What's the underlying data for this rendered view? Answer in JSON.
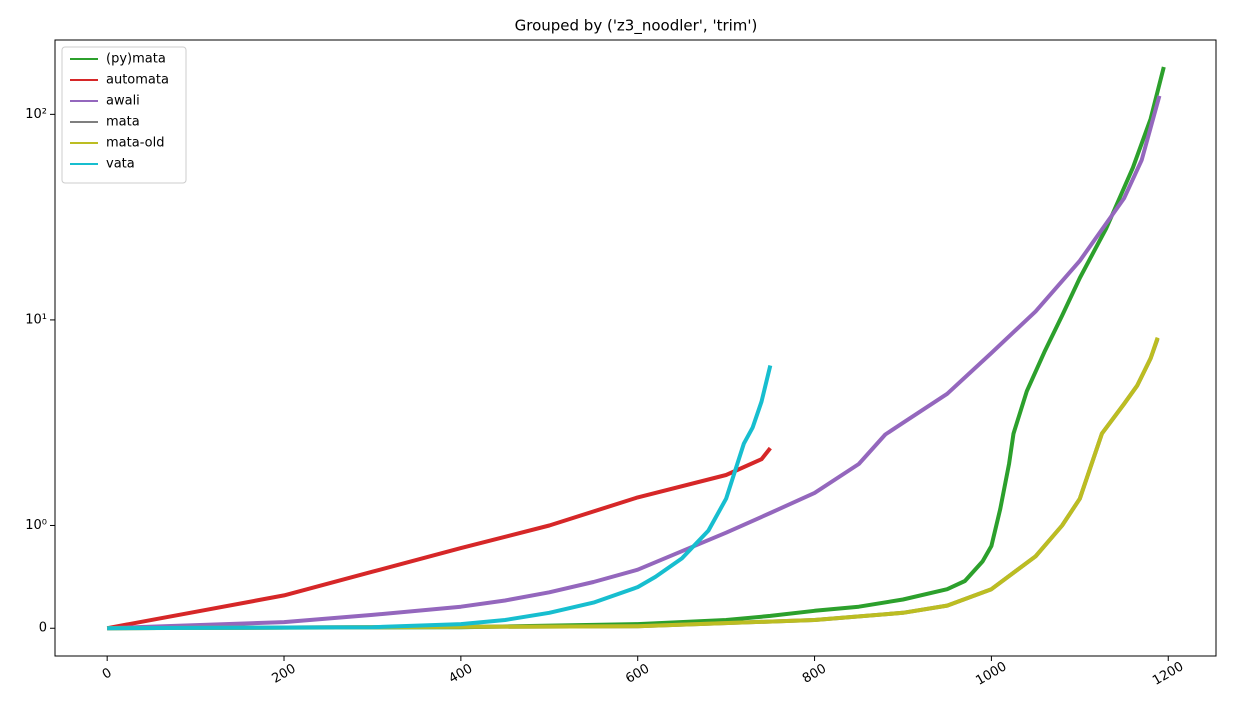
{
  "chart_data": {
    "type": "line",
    "title": "Grouped by ('z3_noodler', 'trim')",
    "yscale": "symlog",
    "linthresh": 1,
    "linscale": 0.5,
    "xlim": [
      -59,
      1254
    ],
    "xticks": [
      0,
      200,
      400,
      600,
      800,
      1000,
      1200
    ],
    "ylim": [
      -0.27,
      230
    ],
    "yticks": [
      0,
      {
        "value": 1,
        "label": "10⁰"
      },
      {
        "value": 10,
        "label": "10¹"
      },
      {
        "value": 100,
        "label": "10²"
      }
    ],
    "legend": "upper left",
    "series": [
      {
        "name": "(py)mata",
        "color": "#2ca02c",
        "x": [
          0,
          400,
          600,
          700,
          750,
          800,
          850,
          900,
          950,
          970,
          990,
          1000,
          1010,
          1020,
          1025,
          1040,
          1060,
          1080,
          1100,
          1130,
          1160,
          1180,
          1195
        ],
        "values": [
          0,
          0.01,
          0.04,
          0.08,
          0.12,
          0.17,
          0.21,
          0.28,
          0.38,
          0.46,
          0.65,
          0.8,
          1.2,
          2.0,
          2.8,
          4.5,
          7,
          10.5,
          16,
          28,
          55,
          95,
          170
        ]
      },
      {
        "name": "automata",
        "color": "#d62728",
        "x": [
          0,
          100,
          200,
          300,
          400,
          500,
          600,
          700,
          740,
          750
        ],
        "values": [
          0,
          0.16,
          0.32,
          0.55,
          0.78,
          1.0,
          1.37,
          1.76,
          2.1,
          2.38
        ]
      },
      {
        "name": "awali",
        "color": "#9467bd",
        "x": [
          0,
          200,
          300,
          400,
          450,
          500,
          550,
          600,
          650,
          700,
          750,
          800,
          850,
          880,
          900,
          950,
          1000,
          1050,
          1100,
          1150,
          1170,
          1190
        ],
        "values": [
          0,
          0.06,
          0.13,
          0.21,
          0.27,
          0.35,
          0.45,
          0.57,
          0.75,
          0.93,
          1.15,
          1.44,
          1.99,
          2.77,
          3.16,
          4.37,
          6.9,
          11,
          19.4,
          39,
          60,
          123
        ]
      },
      {
        "name": "mata",
        "color": "#7f7f7f",
        "x": [
          0,
          600,
          800,
          900,
          950,
          1000,
          1050,
          1080,
          1100,
          1125,
          1150,
          1165,
          1180,
          1188
        ],
        "values": [
          0,
          0.02,
          0.08,
          0.15,
          0.22,
          0.38,
          0.7,
          1.0,
          1.35,
          2.8,
          3.9,
          4.8,
          6.5,
          8.1
        ]
      },
      {
        "name": "mata-old",
        "color": "#bcbd22",
        "x": [
          0,
          600,
          800,
          900,
          950,
          1000,
          1050,
          1080,
          1100,
          1125,
          1150,
          1165,
          1180,
          1188
        ],
        "values": [
          0,
          0.02,
          0.08,
          0.15,
          0.22,
          0.38,
          0.7,
          1.0,
          1.35,
          2.8,
          3.9,
          4.8,
          6.5,
          8.2
        ]
      },
      {
        "name": "vata",
        "color": "#17becf",
        "x": [
          0,
          300,
          400,
          450,
          500,
          550,
          600,
          620,
          650,
          680,
          700,
          720,
          730,
          740,
          750
        ],
        "values": [
          0,
          0.01,
          0.04,
          0.08,
          0.15,
          0.25,
          0.4,
          0.5,
          0.68,
          0.95,
          1.35,
          2.5,
          3,
          4,
          6
        ]
      }
    ]
  }
}
